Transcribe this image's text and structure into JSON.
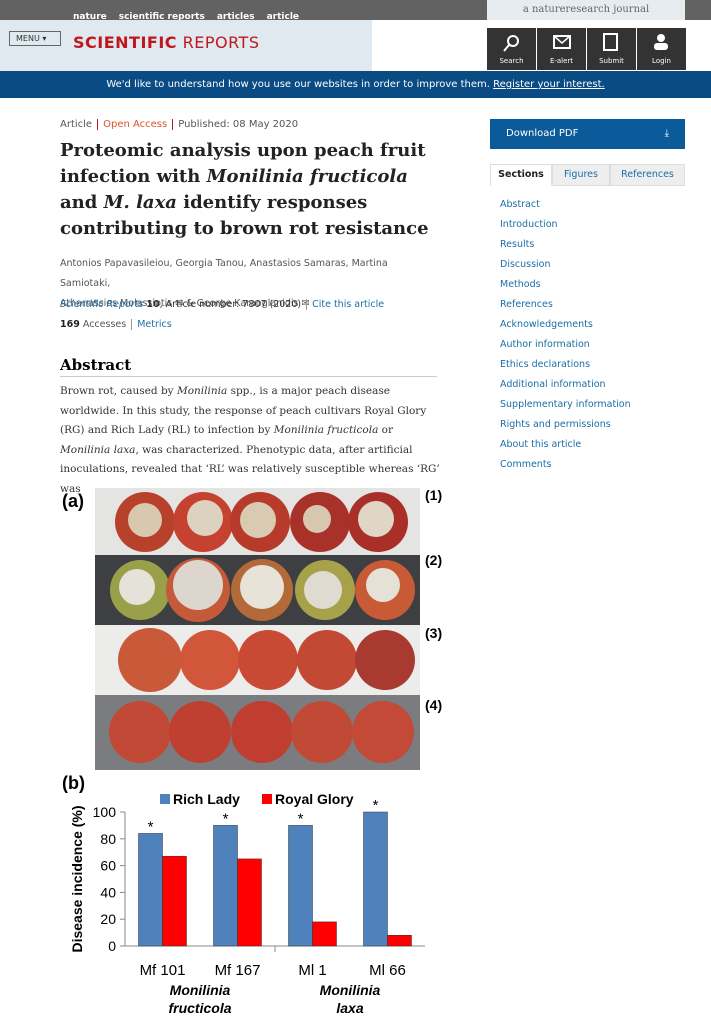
{
  "nav": {
    "links": [
      "nature",
      "scientific reports",
      "articles",
      "article"
    ],
    "tagline": "a natureresearch journal"
  },
  "header": {
    "menu": "MENU",
    "logo_bold": "SCIENTIFIC",
    "logo_light": "REPORTS",
    "tools": [
      "Search",
      "E-alert",
      "Submit",
      "Login"
    ]
  },
  "banner": {
    "text": "We'd like to understand how you use our websites in order to improve them.",
    "link": "Register your interest."
  },
  "article": {
    "type": "Article",
    "access": "Open Access",
    "published": "Published: 08 May 2020",
    "title_parts": [
      "Proteomic analysis upon peach fruit infection with ",
      "Monilinia fructicola",
      " and ",
      "M. laxa",
      " identify responses contributing to brown rot resistance"
    ],
    "authors_line": "Antonios Papavasileiou, Georgia Tanou, Anastasios Samaras, Martina Samiotaki,",
    "author_corr1": "Athanassios Molassiotis",
    "amp": "&",
    "author_corr2": "George Karaoglanidis",
    "journal": "Scientific Reports",
    "volume": "10",
    "article_number": ", Article number: 7807 (2020)",
    "cite": "Cite this article",
    "accesses": "169",
    "accesses_label": "Accesses",
    "metrics": "Metrics",
    "abstract_heading": "Abstract",
    "abstract_parts": [
      "Brown rot, caused by ",
      "Monilinia",
      " spp., is a major peach disease worldwide. In this study, the response of peach cultivars Royal Glory (RG) and Rich Lady (RL) to infection by ",
      "Monilinia fructicola",
      " or ",
      "Monilinia laxa",
      ", was characterized. Phenotypic data, after artificial inoculations, revealed that ‘RL’ was relatively susceptible whereas ‘RG’ was"
    ]
  },
  "sidebar": {
    "download": "Download PDF",
    "tabs": [
      "Sections",
      "Figures",
      "References"
    ],
    "links": [
      "Abstract",
      "Introduction",
      "Results",
      "Discussion",
      "Methods",
      "References",
      "Acknowledgements",
      "Author information",
      "Ethics declarations",
      "Additional information",
      "Supplementary information",
      "Rights and permissions",
      "About this article",
      "Comments"
    ]
  },
  "figure": {
    "label_a": "(a)",
    "rows": [
      "(1)",
      "(2)",
      "(3)",
      "(4)"
    ],
    "label_b": "(b)"
  },
  "chart_data": {
    "type": "bar",
    "ylabel": "Disease incidence (%)",
    "categories": [
      "Mf 101",
      "Mf 167",
      "Ml 1",
      "Ml 66"
    ],
    "series": [
      {
        "name": "Rich Lady",
        "color": "#4f81bd",
        "values": [
          84,
          90,
          90,
          100
        ]
      },
      {
        "name": "Royal Glory",
        "color": "#ff0000",
        "values": [
          67,
          65,
          18,
          8
        ]
      }
    ],
    "annotations": [
      "*",
      "*",
      "*",
      "*"
    ],
    "groups": [
      [
        "Monilinia",
        "fructicola"
      ],
      [
        "Monilinia",
        "laxa"
      ]
    ],
    "ylim": [
      0,
      100
    ],
    "yticks": [
      0,
      20,
      40,
      60,
      80,
      100
    ]
  }
}
